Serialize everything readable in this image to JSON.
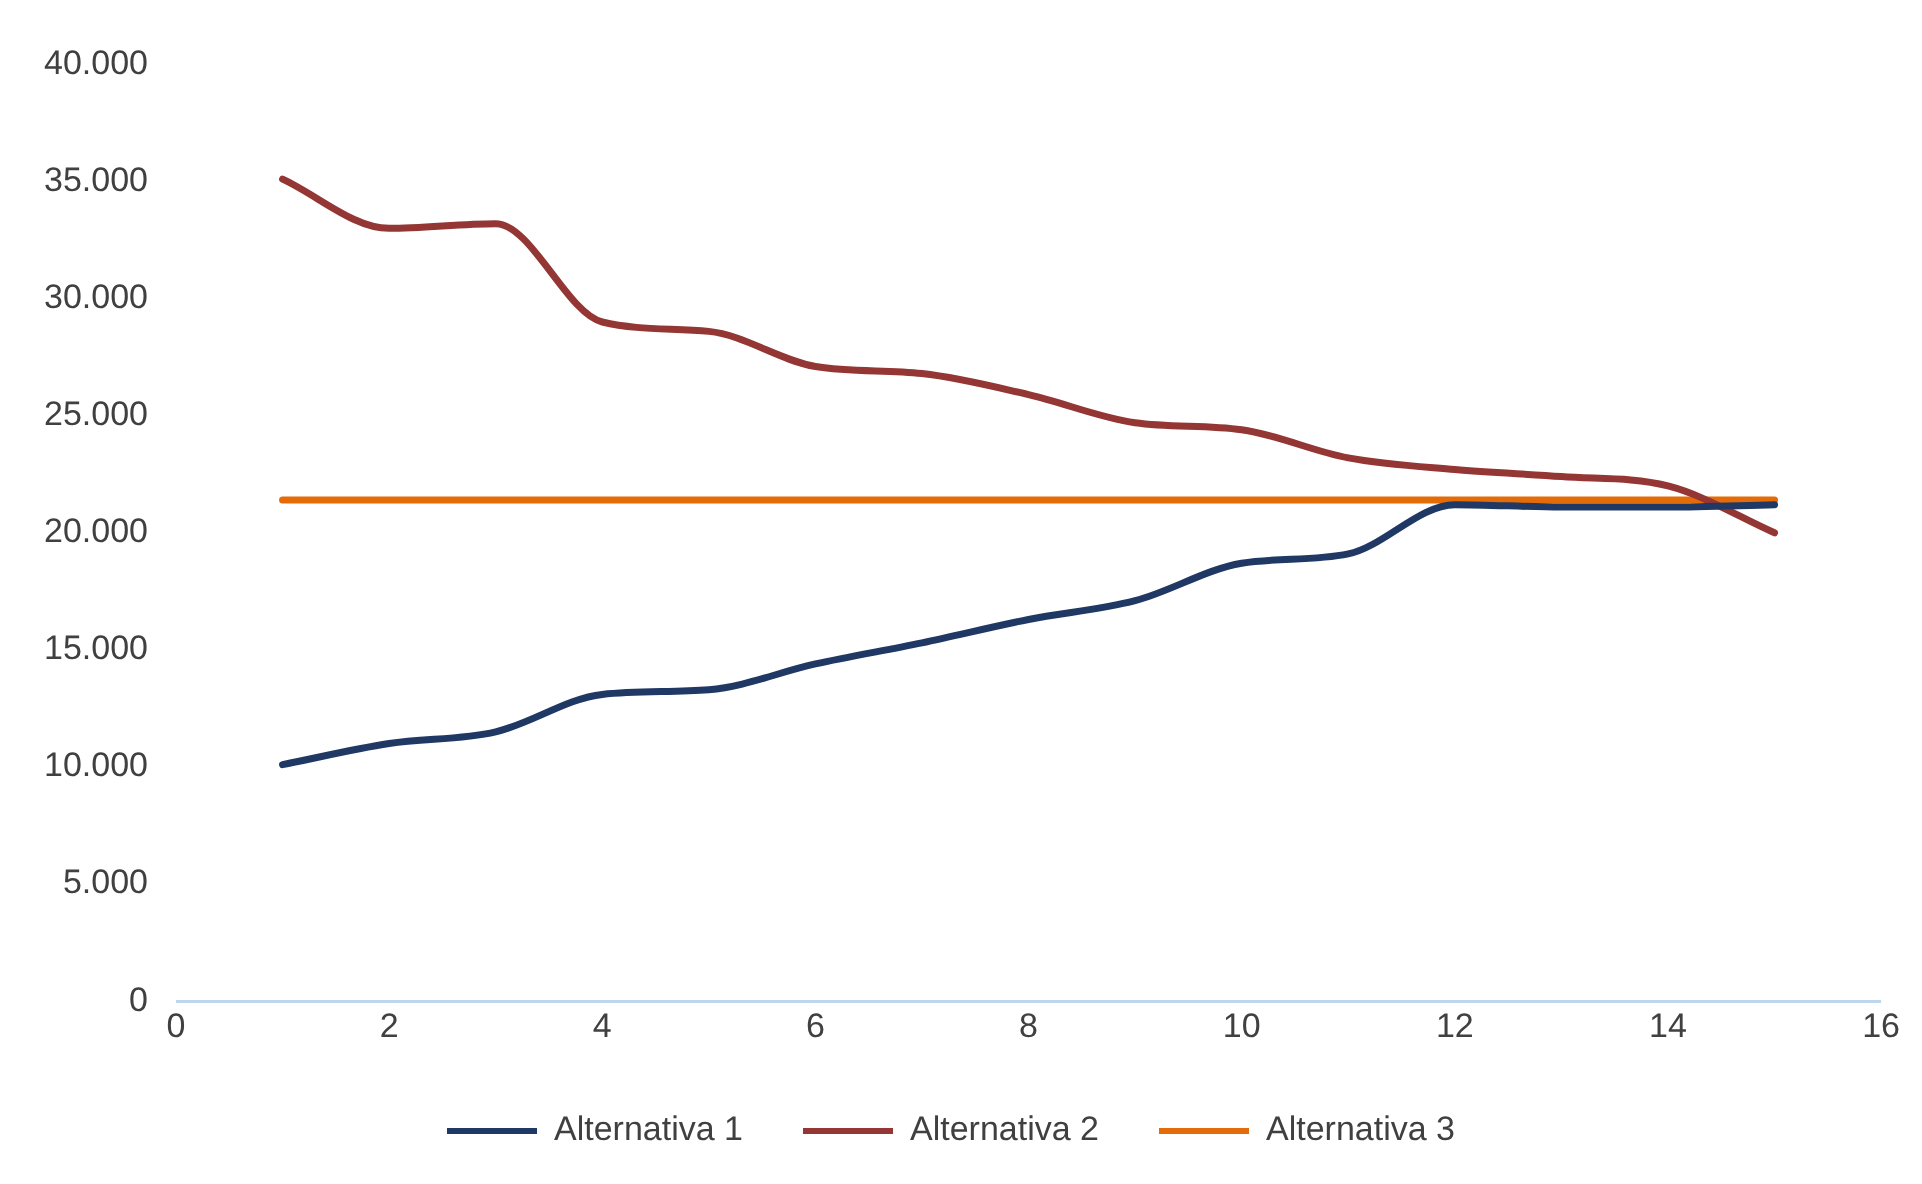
{
  "chart_data": {
    "type": "line",
    "x": [
      1,
      2,
      3,
      4,
      5,
      6,
      7,
      8,
      9,
      10,
      11,
      12,
      13,
      14,
      15
    ],
    "series": [
      {
        "name": "Alternativa 1",
        "color": "#203864",
        "values": [
          10100,
          11000,
          11500,
          13100,
          13300,
          14400,
          15300,
          16300,
          17100,
          18700,
          19100,
          21200,
          21100,
          21100,
          21200
        ]
      },
      {
        "name": "Alternativa 2",
        "color": "#943634",
        "values": [
          35100,
          33000,
          33200,
          29000,
          28600,
          27100,
          26800,
          25900,
          24700,
          24400,
          23200,
          22700,
          22400,
          22000,
          20000
        ]
      },
      {
        "name": "Alternativa 3",
        "color": "#e36c09",
        "values": [
          21400,
          21400,
          21400,
          21400,
          21400,
          21400,
          21400,
          21400,
          21400,
          21400,
          21400,
          21400,
          21400,
          21400,
          21400
        ]
      }
    ],
    "xlim": [
      0,
      16
    ],
    "xticks": [
      0,
      2,
      4,
      6,
      8,
      10,
      12,
      14,
      16
    ],
    "ylim": [
      0,
      40000
    ],
    "yticks": [
      {
        "value": 0,
        "label": "0"
      },
      {
        "value": 5000,
        "label": "5.000"
      },
      {
        "value": 10000,
        "label": "10.000"
      },
      {
        "value": 15000,
        "label": "15.000"
      },
      {
        "value": 20000,
        "label": "20.000"
      },
      {
        "value": 25000,
        "label": "25.000"
      },
      {
        "value": 30000,
        "label": "30.000"
      },
      {
        "value": 35000,
        "label": "35.000"
      },
      {
        "value": 40000,
        "label": "40.000"
      }
    ],
    "legend": "bottom",
    "grid": false,
    "marker": "none",
    "line_style": "solid"
  }
}
